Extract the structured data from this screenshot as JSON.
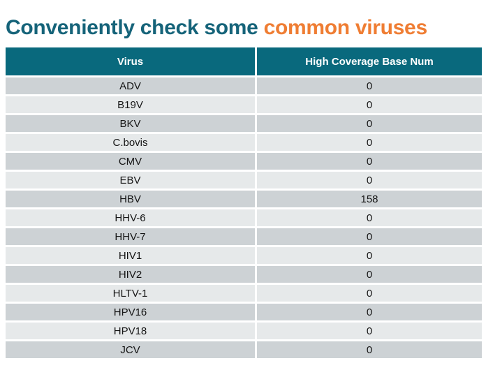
{
  "title": {
    "teal_text": "Conveniently check some ",
    "orange_text": "common viruses"
  },
  "colors": {
    "title_teal": "#156379",
    "title_orange": "#EF7D33",
    "header_bg": "#09697D",
    "header_text": "#FFFFFF",
    "row_dark": "#CDD2D5",
    "row_light": "#E6E9EA",
    "row_text": "#151515"
  },
  "table": {
    "headers": [
      "Virus",
      "High Coverage Base Num"
    ],
    "rows": [
      [
        "ADV",
        "0"
      ],
      [
        "B19V",
        "0"
      ],
      [
        "BKV",
        "0"
      ],
      [
        "C.bovis",
        "0"
      ],
      [
        "CMV",
        "0"
      ],
      [
        "EBV",
        "0"
      ],
      [
        "HBV",
        "158"
      ],
      [
        "HHV-6",
        "0"
      ],
      [
        "HHV-7",
        "0"
      ],
      [
        "HIV1",
        "0"
      ],
      [
        "HIV2",
        "0"
      ],
      [
        "HLTV-1",
        "0"
      ],
      [
        "HPV16",
        "0"
      ],
      [
        "HPV18",
        "0"
      ],
      [
        "JCV",
        "0"
      ]
    ]
  }
}
